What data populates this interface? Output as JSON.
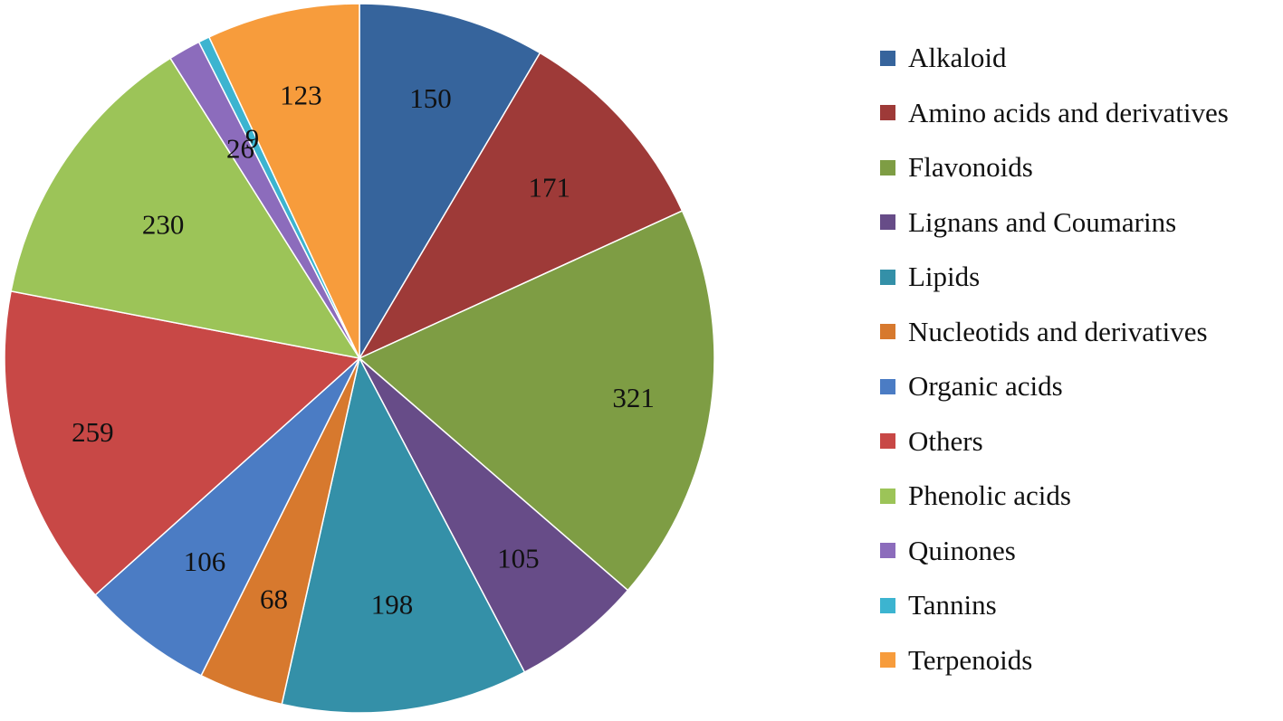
{
  "chart_data": {
    "type": "pie",
    "title": "",
    "start_angle": "top, clockwise",
    "legend_position": "right",
    "slices": [
      {
        "label": "Alkaloid",
        "value": 150,
        "value_label": "150",
        "color": "#36649C"
      },
      {
        "label": "Amino acids and derivatives",
        "value": 171,
        "value_label": "171",
        "color": "#9E3A38"
      },
      {
        "label": "Flavonoids",
        "value": 321,
        "value_label": "321",
        "color": "#7E9D44"
      },
      {
        "label": "Lignans and Coumarins",
        "value": 105,
        "value_label": "105",
        "color": "#674C88"
      },
      {
        "label": "Lipids",
        "value": 198,
        "value_label": "198",
        "color": "#3490A8"
      },
      {
        "label": "Nucleotids and derivatives",
        "value": 68,
        "value_label": "68",
        "color": "#D7792E"
      },
      {
        "label": "Organic acids",
        "value": 106,
        "value_label": "106",
        "color": "#4B7CC4"
      },
      {
        "label": "Others",
        "value": 259,
        "value_label": "259",
        "color": "#C84846"
      },
      {
        "label": "Phenolic acids",
        "value": 230,
        "value_label": "230",
        "color": "#9CC458"
      },
      {
        "label": "Quinones",
        "value": 26,
        "value_label": "26",
        "color": "#8C6CBC"
      },
      {
        "label": "Tannins",
        "value": 9,
        "value_label": "9",
        "color": "#3CB4D0"
      },
      {
        "label": "Terpenoids",
        "value": 123,
        "value_label": "123",
        "color": "#F79C3C"
      }
    ]
  },
  "legend": {
    "items": [
      {
        "label": "Alkaloid",
        "color": "#36649C"
      },
      {
        "label": "Amino acids and derivatives",
        "color": "#9E3A38"
      },
      {
        "label": "Flavonoids",
        "color": "#7E9D44"
      },
      {
        "label": "Lignans and Coumarins",
        "color": "#674C88"
      },
      {
        "label": "Lipids",
        "color": "#3490A8"
      },
      {
        "label": "Nucleotids and derivatives",
        "color": "#D7792E"
      },
      {
        "label": "Organic acids",
        "color": "#4B7CC4"
      },
      {
        "label": "Others",
        "color": "#C84846"
      },
      {
        "label": "Phenolic acids",
        "color": "#9CC458"
      },
      {
        "label": "Quinones",
        "color": "#8C6CBC"
      },
      {
        "label": "Tannins",
        "color": "#3CB4D0"
      },
      {
        "label": "Terpenoids",
        "color": "#F79C3C"
      }
    ]
  }
}
